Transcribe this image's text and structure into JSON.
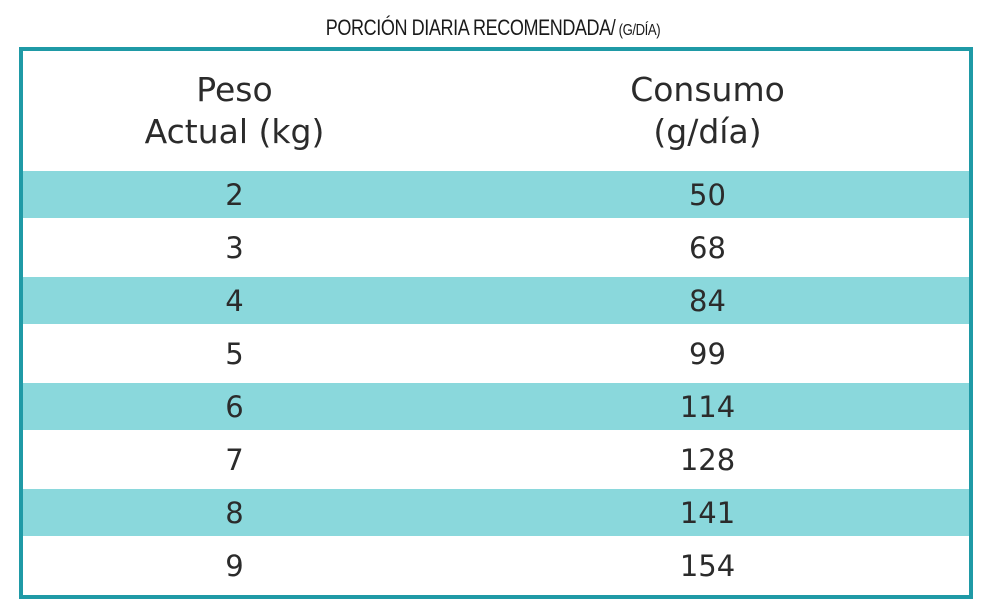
{
  "title": {
    "main": "PORCIÓN DIARIA RECOMENDADA/",
    "unit": " (G/DÍA)"
  },
  "table": {
    "headers": {
      "weight_line1": "Peso",
      "weight_line2": "Actual (kg)",
      "intake_line1": "Consumo",
      "intake_line2": "(g/día)"
    },
    "rows": [
      {
        "weight": "2",
        "intake": "50"
      },
      {
        "weight": "3",
        "intake": "68"
      },
      {
        "weight": "4",
        "intake": "84"
      },
      {
        "weight": "5",
        "intake": "99"
      },
      {
        "weight": "6",
        "intake": "114"
      },
      {
        "weight": "7",
        "intake": "128"
      },
      {
        "weight": "8",
        "intake": "141"
      },
      {
        "weight": "9",
        "intake": "154"
      }
    ]
  },
  "colors": {
    "border": "#1f9aa6",
    "shaded_row": "#8ad8dc",
    "text": "#2b2b2b"
  }
}
